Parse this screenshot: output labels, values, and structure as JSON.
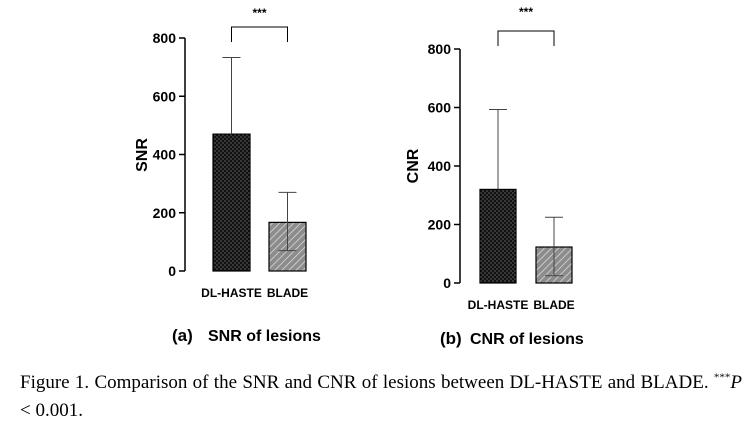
{
  "chart_data": [
    {
      "type": "bar",
      "panel_letter": "(a)",
      "panel_title": "SNR of lesions",
      "ylabel": "SNR",
      "categories": [
        "DL-HASTE",
        "BLADE"
      ],
      "values": [
        470,
        167
      ],
      "error_plus": [
        263,
        103
      ],
      "error_minus": [
        0,
        97
      ],
      "bar_fill": [
        "dots",
        "hatch"
      ],
      "ylim": [
        0,
        800
      ],
      "yticks": [
        0,
        200,
        400,
        600,
        800
      ],
      "significance": "***"
    },
    {
      "type": "bar",
      "panel_letter": "(b)",
      "panel_title": "CNR of lesions",
      "ylabel": "CNR",
      "categories": [
        "DL-HASTE",
        "BLADE"
      ],
      "values": [
        320,
        123
      ],
      "error_plus": [
        273,
        102
      ],
      "error_minus": [
        0,
        98
      ],
      "bar_fill": [
        "dots",
        "hatch"
      ],
      "ylim": [
        0,
        800
      ],
      "yticks": [
        0,
        200,
        400,
        600,
        800
      ],
      "significance": "***"
    }
  ],
  "caption": {
    "text_before": "Figure 1. Comparison of the SNR and CNR of lesions between DL-HASTE and BLADE. ",
    "sup": "***",
    "p_symbol": "P",
    "text_after": " < 0.001."
  },
  "colors": {
    "bar_dark": "#111111",
    "hatch_fill": "#8c8c8c",
    "axis": "#000000"
  }
}
